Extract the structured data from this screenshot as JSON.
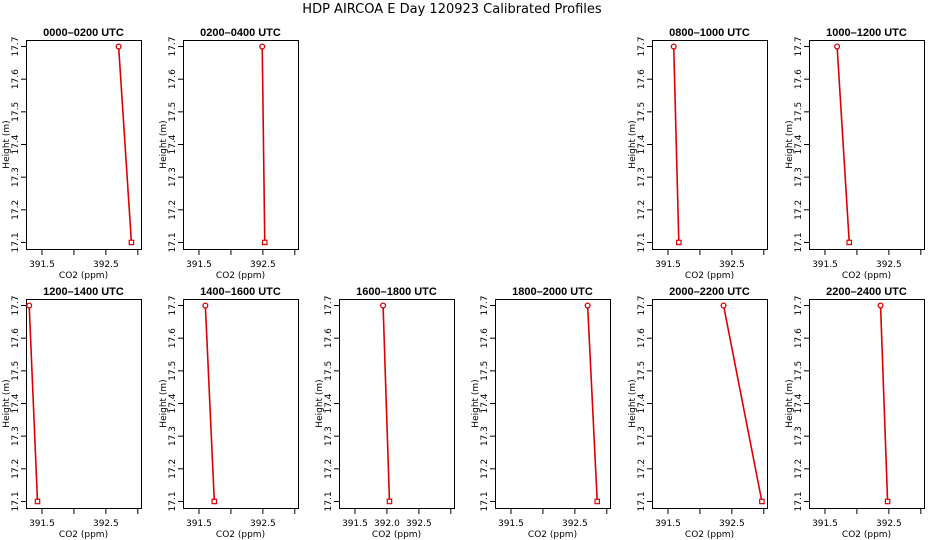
{
  "figure_title": "HDP AIRCOA E  Day 120923  Calibrated Profiles",
  "colors": {
    "series": "#dd0000",
    "axis": "#000000"
  },
  "chart_data": [
    {
      "type": "line",
      "title": "0000–0200 UTC",
      "xlabel": "CO2 (ppm)",
      "ylabel": "Height (m)",
      "xlim": [
        391.25,
        393.05
      ],
      "ylim": [
        17.08,
        17.72
      ],
      "xticks": [
        391.5,
        392.0,
        392.5,
        393.0
      ],
      "xtick_labels": [
        "391.5",
        "",
        "392.5",
        ""
      ],
      "yticks": [
        17.1,
        17.2,
        17.3,
        17.4,
        17.5,
        17.6,
        17.7
      ],
      "ytick_labels": [
        "17.1",
        "17.2",
        "17.3",
        "17.4",
        "17.5",
        "17.6",
        "17.7"
      ],
      "series": [
        {
          "points": [
            {
              "x": 392.7,
              "y": 17.7
            },
            {
              "x": 392.9,
              "y": 17.1
            }
          ]
        }
      ]
    },
    {
      "type": "line",
      "title": "0200–0400 UTC",
      "xlabel": "CO2 (ppm)",
      "ylabel": "Height (m)",
      "xlim": [
        391.25,
        393.05
      ],
      "ylim": [
        17.08,
        17.72
      ],
      "xticks": [
        391.5,
        392.0,
        392.5,
        393.0
      ],
      "xtick_labels": [
        "391.5",
        "",
        "392.5",
        ""
      ],
      "yticks": [
        17.1,
        17.2,
        17.3,
        17.4,
        17.5,
        17.6,
        17.7
      ],
      "ytick_labels": [
        "17.1",
        "17.2",
        "17.3",
        "17.4",
        "17.5",
        "17.6",
        "17.7"
      ],
      "series": [
        {
          "points": [
            {
              "x": 392.49,
              "y": 17.7
            },
            {
              "x": 392.53,
              "y": 17.1
            }
          ]
        }
      ]
    },
    {
      "type": "line",
      "title": "0800–1000 UTC",
      "xlabel": "CO2 (ppm)",
      "ylabel": "Height (m)",
      "xlim": [
        391.25,
        393.05
      ],
      "ylim": [
        17.08,
        17.72
      ],
      "xticks": [
        391.5,
        392.0,
        392.5,
        393.0
      ],
      "xtick_labels": [
        "391.5",
        "",
        "392.5",
        ""
      ],
      "yticks": [
        17.1,
        17.2,
        17.3,
        17.4,
        17.5,
        17.6,
        17.7
      ],
      "ytick_labels": [
        "17.1",
        "17.2",
        "17.3",
        "17.4",
        "17.5",
        "17.6",
        "17.7"
      ],
      "series": [
        {
          "points": [
            {
              "x": 391.59,
              "y": 17.7
            },
            {
              "x": 391.67,
              "y": 17.1
            }
          ]
        }
      ]
    },
    {
      "type": "line",
      "title": "1000–1200 UTC",
      "xlabel": "CO2 (ppm)",
      "ylabel": "Height (m)",
      "xlim": [
        391.25,
        393.05
      ],
      "ylim": [
        17.08,
        17.72
      ],
      "xticks": [
        391.5,
        392.0,
        392.5,
        393.0
      ],
      "xtick_labels": [
        "391.5",
        "",
        "392.5",
        ""
      ],
      "yticks": [
        17.1,
        17.2,
        17.3,
        17.4,
        17.5,
        17.6,
        17.7
      ],
      "ytick_labels": [
        "17.1",
        "17.2",
        "17.3",
        "17.4",
        "17.5",
        "17.6",
        "17.7"
      ],
      "series": [
        {
          "points": [
            {
              "x": 391.69,
              "y": 17.7
            },
            {
              "x": 391.88,
              "y": 17.1
            }
          ]
        }
      ]
    },
    {
      "type": "line",
      "title": "1200–1400 UTC",
      "xlabel": "CO2 (ppm)",
      "ylabel": "Height (m)",
      "xlim": [
        391.25,
        393.05
      ],
      "ylim": [
        17.08,
        17.72
      ],
      "xticks": [
        391.5,
        392.0,
        392.5,
        393.0
      ],
      "xtick_labels": [
        "391.5",
        "",
        "392.5",
        ""
      ],
      "yticks": [
        17.1,
        17.2,
        17.3,
        17.4,
        17.5,
        17.6,
        17.7
      ],
      "ytick_labels": [
        "17.1",
        "17.2",
        "17.3",
        "17.4",
        "17.5",
        "17.6",
        "17.7"
      ],
      "series": [
        {
          "points": [
            {
              "x": 391.3,
              "y": 17.7
            },
            {
              "x": 391.43,
              "y": 17.1
            }
          ]
        }
      ]
    },
    {
      "type": "line",
      "title": "1400–1600 UTC",
      "xlabel": "CO2 (ppm)",
      "ylabel": "Height (m)",
      "xlim": [
        391.25,
        393.05
      ],
      "ylim": [
        17.08,
        17.72
      ],
      "xticks": [
        391.5,
        392.0,
        392.5,
        393.0
      ],
      "xtick_labels": [
        "391.5",
        "",
        "392.5",
        ""
      ],
      "yticks": [
        17.1,
        17.2,
        17.3,
        17.4,
        17.5,
        17.6,
        17.7
      ],
      "ytick_labels": [
        "17.1",
        "17.2",
        "17.3",
        "17.4",
        "17.5",
        "17.6",
        "17.7"
      ],
      "series": [
        {
          "points": [
            {
              "x": 391.6,
              "y": 17.7
            },
            {
              "x": 391.74,
              "y": 17.1
            }
          ]
        }
      ]
    },
    {
      "type": "line",
      "title": "1600–1800 UTC",
      "xlabel": "CO2 (ppm)",
      "ylabel": "Height (m)",
      "xlim": [
        391.25,
        393.05
      ],
      "ylim": [
        17.08,
        17.72
      ],
      "xticks": [
        391.5,
        392.0,
        392.5,
        393.0
      ],
      "xtick_labels": [
        "391.5",
        "392.0",
        "392.5",
        ""
      ],
      "yticks": [
        17.1,
        17.2,
        17.3,
        17.4,
        17.5,
        17.6,
        17.7
      ],
      "ytick_labels": [
        "17.1",
        "17.2",
        "17.3",
        "17.4",
        "17.5",
        "17.6",
        "17.7"
      ],
      "series": [
        {
          "points": [
            {
              "x": 391.94,
              "y": 17.7
            },
            {
              "x": 392.04,
              "y": 17.1
            }
          ]
        }
      ]
    },
    {
      "type": "line",
      "title": "1800–2000 UTC",
      "xlabel": "CO2 (ppm)",
      "ylabel": "Height (m)",
      "xlim": [
        391.25,
        393.05
      ],
      "ylim": [
        17.08,
        17.72
      ],
      "xticks": [
        391.5,
        392.0,
        392.5,
        393.0
      ],
      "xtick_labels": [
        "391.5",
        "",
        "392.5",
        ""
      ],
      "yticks": [
        17.1,
        17.2,
        17.3,
        17.4,
        17.5,
        17.6,
        17.7
      ],
      "ytick_labels": [
        "17.1",
        "17.2",
        "17.3",
        "17.4",
        "17.5",
        "17.6",
        "17.7"
      ],
      "series": [
        {
          "points": [
            {
              "x": 392.7,
              "y": 17.7
            },
            {
              "x": 392.85,
              "y": 17.1
            }
          ]
        }
      ]
    },
    {
      "type": "line",
      "title": "2000–2200 UTC",
      "xlabel": "CO2 (ppm)",
      "ylabel": "Height (m)",
      "xlim": [
        391.25,
        393.05
      ],
      "ylim": [
        17.08,
        17.72
      ],
      "xticks": [
        391.5,
        392.0,
        392.5,
        393.0
      ],
      "xtick_labels": [
        "391.5",
        "",
        "392.5",
        ""
      ],
      "yticks": [
        17.1,
        17.2,
        17.3,
        17.4,
        17.5,
        17.6,
        17.7
      ],
      "ytick_labels": [
        "17.1",
        "17.2",
        "17.3",
        "17.4",
        "17.5",
        "17.6",
        "17.7"
      ],
      "series": [
        {
          "points": [
            {
              "x": 392.37,
              "y": 17.7
            },
            {
              "x": 392.97,
              "y": 17.1
            }
          ]
        }
      ]
    },
    {
      "type": "line",
      "title": "2200–2400 UTC",
      "xlabel": "CO2 (ppm)",
      "ylabel": "Height (m)",
      "xlim": [
        391.25,
        393.05
      ],
      "ylim": [
        17.08,
        17.72
      ],
      "xticks": [
        391.5,
        392.0,
        392.5,
        393.0
      ],
      "xtick_labels": [
        "391.5",
        "",
        "392.5",
        ""
      ],
      "yticks": [
        17.1,
        17.2,
        17.3,
        17.4,
        17.5,
        17.6,
        17.7
      ],
      "ytick_labels": [
        "17.1",
        "17.2",
        "17.3",
        "17.4",
        "17.5",
        "17.6",
        "17.7"
      ],
      "series": [
        {
          "points": [
            {
              "x": 392.37,
              "y": 17.7
            },
            {
              "x": 392.48,
              "y": 17.1
            }
          ]
        }
      ]
    }
  ]
}
